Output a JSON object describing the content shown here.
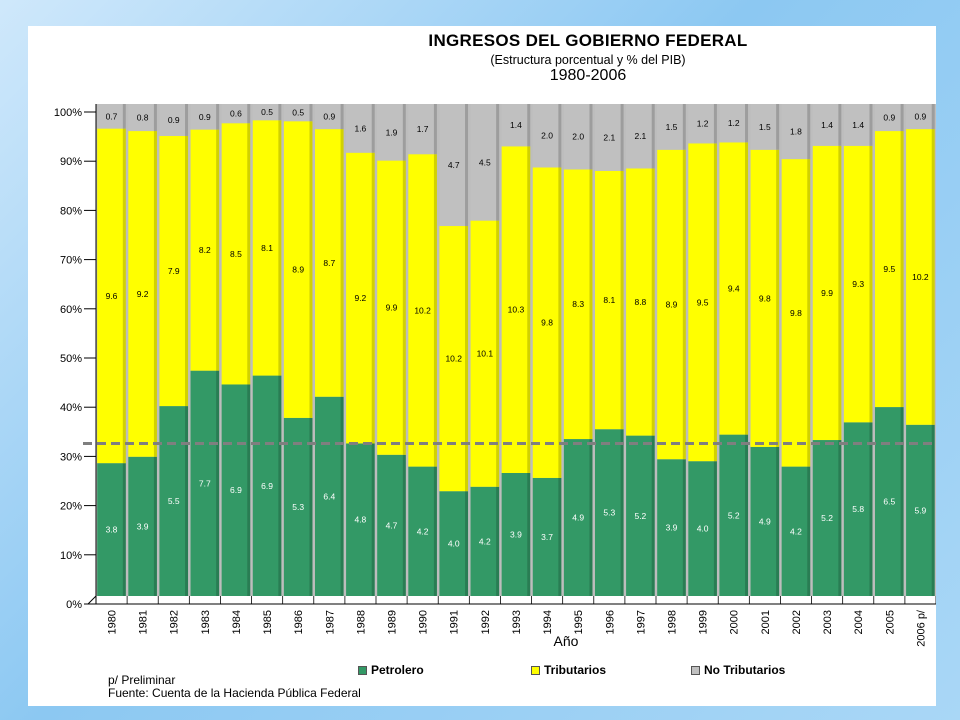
{
  "chart_data": {
    "type": "bar",
    "stacked": true,
    "normalized": true,
    "title": "INGRESOS DEL GOBIERNO FEDERAL",
    "subtitle": "(Estructura porcentual y % del PIB)",
    "years_label": "1980-2006",
    "xlabel": "Año",
    "ylim": [
      0,
      100
    ],
    "yticks": [
      "0%",
      "10%",
      "20%",
      "30%",
      "40%",
      "50%",
      "60%",
      "70%",
      "80%",
      "90%",
      "100%"
    ],
    "reference_line": 31,
    "categories": [
      "1980",
      "1981",
      "1982",
      "1983",
      "1984",
      "1985",
      "1986",
      "1987",
      "1988",
      "1989",
      "1990",
      "1991",
      "1992",
      "1993",
      "1994",
      "1995",
      "1996",
      "1997",
      "1998",
      "1999",
      "2000",
      "2001",
      "2002",
      "2003",
      "2004",
      "2005",
      "2006 p/"
    ],
    "series": [
      {
        "name": "Petrolero",
        "color": "#339966",
        "label_color": "#ffffff",
        "shares": [
          27,
          28.3,
          38.6,
          45.8,
          43,
          44.8,
          36.2,
          40.5,
          31,
          28.7,
          26.3,
          21.3,
          22.2,
          25,
          24,
          31.9,
          33.9,
          32.6,
          27.8,
          27.4,
          32.8,
          30.3,
          26.3,
          31.7,
          35.3,
          38.4,
          34.8
        ],
        "values": [
          "3.8",
          "3.9",
          "5.5",
          "7.7",
          "6.9",
          "6.9",
          "5.3",
          "6.4",
          "4.8",
          "4.7",
          "4.2",
          "4.0",
          "4.2",
          "3.9",
          "3.7",
          "4.9",
          "5.3",
          "5.2",
          "3.9",
          "4.0",
          "5.2",
          "4.9",
          "4.2",
          "5.2",
          "5.8",
          "6.5",
          "5.9"
        ]
      },
      {
        "name": "Tributarios",
        "color": "#ffff00",
        "label_color": "#000000",
        "shares": [
          68,
          66.2,
          54.9,
          49,
          53.1,
          51.9,
          60.3,
          54.4,
          59.1,
          59.8,
          63.5,
          53.9,
          54.1,
          66.4,
          63.1,
          54.8,
          52.5,
          54.3,
          62.9,
          64.6,
          59.4,
          60.4,
          62.5,
          59.8,
          56.2,
          56.1,
          60.1
        ],
        "values": [
          "9.6",
          "9.2",
          "7.9",
          "8.2",
          "8.5",
          "8.1",
          "8.9",
          "8.7",
          "9.2",
          "9.9",
          "10.2",
          "10.2",
          "10.1",
          "10.3",
          "9.8",
          "8.3",
          "8.1",
          "8.8",
          "8.9",
          "9.5",
          "9.4",
          "9.8",
          "9.8",
          "9.9",
          "9.3",
          "9.5",
          "10.2"
        ]
      },
      {
        "name": "No Tributarios",
        "color": "#c0c0c0",
        "label_color": "#000000",
        "shares": [
          5,
          5.5,
          6.5,
          5.2,
          3.9,
          3.3,
          3.5,
          5.1,
          9.9,
          11.5,
          10.2,
          24.8,
          23.7,
          8.6,
          12.9,
          13.3,
          13.6,
          13.1,
          9.3,
          8.0,
          7.8,
          9.3,
          11.2,
          8.5,
          8.5,
          5.5,
          5.1
        ],
        "values": [
          "0.7",
          "0.8",
          "0.9",
          "0.9",
          "0.6",
          "0.5",
          "0.5",
          "0.9",
          "1.6",
          "1.9",
          "1.7",
          "4.7",
          "4.5",
          "1.4",
          "2.0",
          "2.0",
          "2.1",
          "2.1",
          "1.5",
          "1.2",
          "1.2",
          "1.5",
          "1.8",
          "1.4",
          "1.4",
          "0.9",
          "0.9"
        ]
      }
    ],
    "legend_position": "bottom"
  },
  "notes": {
    "preliminar": "p/ Preliminar",
    "fuente": "Fuente: Cuenta de la Hacienda Pública Federal"
  }
}
